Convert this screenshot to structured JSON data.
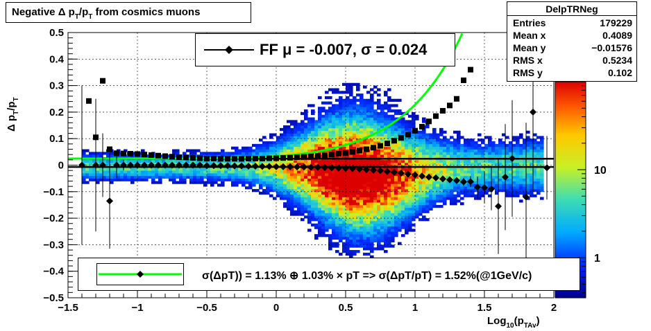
{
  "chart_data": {
    "type": "heatmap",
    "title_parts": [
      "Negative Δ p",
      "T",
      "/p",
      "T",
      " from cosmics muons"
    ],
    "xlabel_parts": [
      "Log",
      "10",
      "(p",
      "TAv",
      ")"
    ],
    "ylabel_parts": [
      "Δ p",
      "T",
      "/p",
      "T"
    ],
    "xlim": [
      -1.5,
      2
    ],
    "ylim": [
      -0.5,
      0.5
    ],
    "x_ticks": [
      -1.5,
      -1,
      -0.5,
      0,
      0.5,
      1,
      1.5,
      2
    ],
    "x_tick_labels": [
      "−1.5",
      "−1",
      "−0.5",
      "0",
      "0.5",
      "1",
      "1.5",
      "2"
    ],
    "y_ticks": [
      -0.5,
      -0.4,
      -0.3,
      -0.2,
      -0.1,
      0,
      0.1,
      0.2,
      0.3,
      0.4,
      0.5
    ],
    "y_tick_labels": [
      "−0.5",
      "−0.4",
      "−0.3",
      "−0.2",
      "−0.1",
      "0",
      "0.1",
      "0.2",
      "0.3",
      "0.4",
      "0.5"
    ],
    "grid": true,
    "colorbar": {
      "scale": "log",
      "range": [
        0.35,
        100
      ],
      "tick_values": [
        1,
        10
      ],
      "tick_labels": [
        "1",
        "10"
      ]
    },
    "stats": {
      "name": "DelpTRNeg",
      "rows": [
        {
          "label": "Entries",
          "value": "179229"
        },
        {
          "label": "Mean x",
          "value": "0.4089"
        },
        {
          "label": "Mean y",
          "value": "−0.01576"
        },
        {
          "label": "RMS x",
          "value": "0.5234"
        },
        {
          "label": "RMS y",
          "value": "0.102"
        }
      ]
    },
    "gauss_fit_legend": "FF μ = -0.007, σ =   0.024",
    "resolution_legend": "σ(ΔpT)) =  1.13% ⊕  1.03% × pT => σ(ΔpT/pT) =  1.52%(@1GeV/c)",
    "horizontal_lines": [
      0.024,
      -0.007
    ],
    "mean_series": {
      "marker": "diamond",
      "x": [
        -1.4,
        -1.3,
        -1.25,
        -1.2,
        -1.15,
        -1.1,
        -1.05,
        -1.0,
        -0.95,
        -0.9,
        -0.85,
        -0.8,
        -0.75,
        -0.7,
        -0.65,
        -0.6,
        -0.55,
        -0.5,
        -0.45,
        -0.4,
        -0.35,
        -0.3,
        -0.25,
        -0.2,
        -0.15,
        -0.1,
        -0.05,
        0.0,
        0.05,
        0.1,
        0.15,
        0.2,
        0.25,
        0.3,
        0.35,
        0.4,
        0.45,
        0.5,
        0.55,
        0.6,
        0.65,
        0.7,
        0.75,
        0.8,
        0.85,
        0.9,
        0.95,
        1.0,
        1.05,
        1.1,
        1.15,
        1.2,
        1.25,
        1.3,
        1.35,
        1.4,
        1.45,
        1.5,
        1.55,
        1.6,
        1.65,
        1.7,
        1.8,
        1.85,
        1.95
      ],
      "y": [
        0.0,
        0.0,
        0.0,
        -0.135,
        0.0,
        0.0,
        0.0,
        0.0,
        0.0,
        0.0,
        0.0,
        0.0,
        0.0,
        0.0,
        0.0,
        0.0,
        0.0,
        -0.002,
        -0.002,
        -0.002,
        -0.002,
        -0.003,
        -0.003,
        -0.004,
        -0.004,
        -0.005,
        -0.005,
        -0.006,
        -0.006,
        -0.006,
        -0.007,
        -0.007,
        -0.008,
        -0.008,
        -0.009,
        -0.01,
        -0.011,
        -0.012,
        -0.013,
        -0.015,
        -0.017,
        -0.019,
        -0.021,
        -0.024,
        -0.027,
        -0.03,
        -0.034,
        -0.037,
        -0.041,
        -0.045,
        -0.048,
        -0.052,
        -0.055,
        -0.058,
        -0.063,
        -0.062,
        -0.083,
        -0.085,
        -0.09,
        -0.155,
        -0.045,
        0.025,
        -0.12,
        0.2,
        -0.01
      ],
      "err": [
        0.3,
        0.25,
        0.12,
        0.18,
        0.05,
        0.02,
        0.01,
        0.005,
        0.005,
        0.004,
        0.004,
        0.003,
        0.003,
        0.003,
        0.003,
        0.003,
        0.003,
        0.003,
        0.003,
        0.003,
        0.003,
        0.003,
        0.003,
        0.003,
        0.003,
        0.003,
        0.003,
        0.003,
        0.003,
        0.003,
        0.003,
        0.003,
        0.003,
        0.003,
        0.003,
        0.003,
        0.003,
        0.003,
        0.003,
        0.003,
        0.003,
        0.004,
        0.004,
        0.004,
        0.005,
        0.005,
        0.005,
        0.006,
        0.006,
        0.007,
        0.008,
        0.009,
        0.01,
        0.012,
        0.015,
        0.02,
        0.04,
        0.06,
        0.08,
        0.18,
        0.2,
        0.22,
        0.28,
        0.3,
        0.12
      ]
    },
    "rms_series": {
      "marker": "square",
      "x": [
        -1.35,
        -1.3,
        -1.25,
        -1.2,
        -1.15,
        -1.1,
        -1.05,
        -1.0,
        -0.95,
        -0.9,
        -0.85,
        -0.8,
        -0.75,
        -0.7,
        -0.65,
        -0.6,
        -0.55,
        -0.5,
        -0.45,
        -0.4,
        -0.35,
        -0.3,
        -0.25,
        -0.2,
        -0.15,
        -0.1,
        -0.05,
        0.0,
        0.05,
        0.1,
        0.15,
        0.2,
        0.25,
        0.3,
        0.35,
        0.4,
        0.45,
        0.5,
        0.55,
        0.6,
        0.65,
        0.7,
        0.75,
        0.8,
        0.85,
        0.9,
        0.95,
        1.0,
        1.05,
        1.1,
        1.15,
        1.2,
        1.25,
        1.3,
        1.35,
        1.4
      ],
      "y": [
        0.242,
        0.105,
        0.318,
        0.06,
        0.045,
        0.044,
        0.043,
        0.042,
        0.04,
        0.038,
        0.036,
        0.034,
        0.032,
        0.03,
        0.029,
        0.027,
        0.026,
        0.025,
        0.025,
        0.024,
        0.024,
        0.024,
        0.024,
        0.025,
        0.025,
        0.025,
        0.026,
        0.026,
        0.027,
        0.028,
        0.03,
        0.031,
        0.033,
        0.035,
        0.037,
        0.04,
        0.043,
        0.046,
        0.05,
        0.055,
        0.06,
        0.066,
        0.073,
        0.082,
        0.092,
        0.103,
        0.115,
        0.13,
        0.145,
        0.165,
        0.185,
        0.205,
        0.225,
        0.25,
        0.32,
        0.36
      ]
    },
    "resolution_fit": {
      "color": "#00ff00",
      "sigma0": 0.0113,
      "sigma1": 0.0103
    }
  }
}
